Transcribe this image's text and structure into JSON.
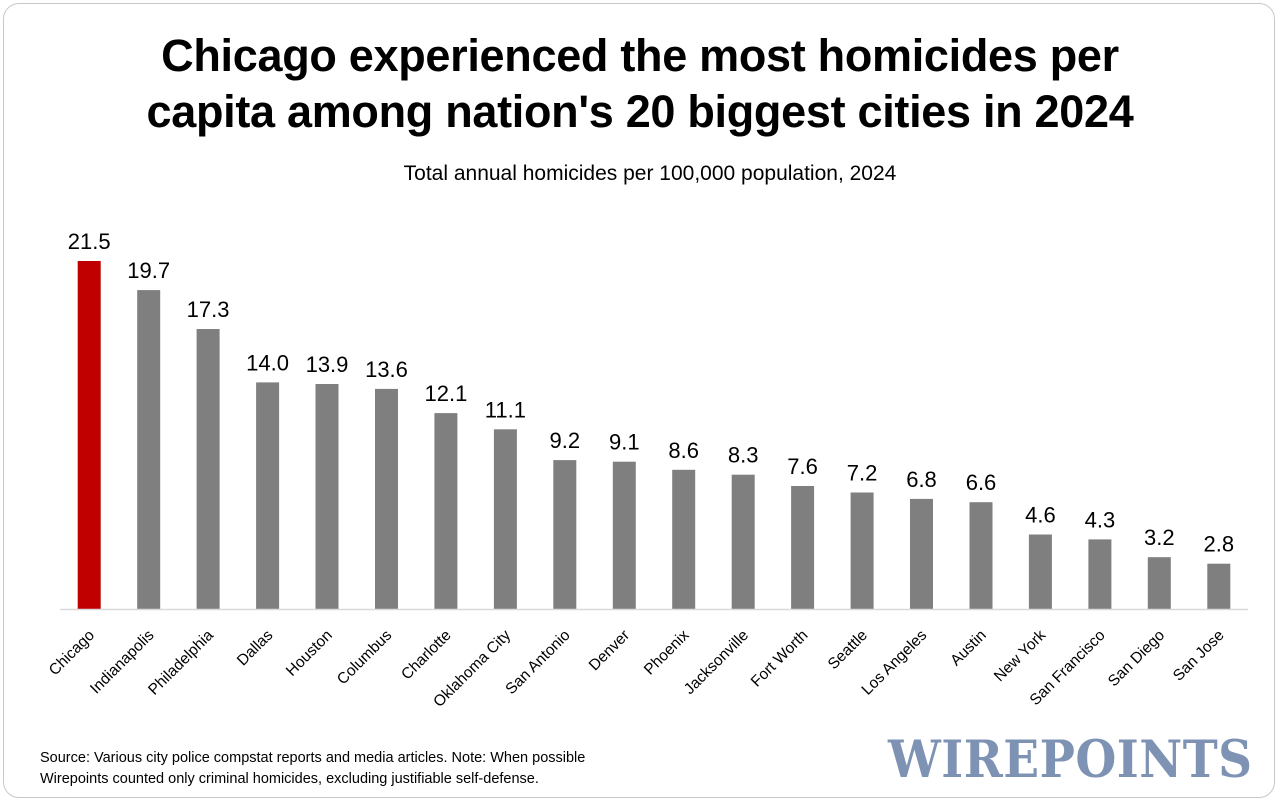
{
  "chart_data": {
    "type": "bar",
    "title": "Chicago experienced the most homicides per capita among nation's 20 biggest cities in 2024",
    "title_lines": [
      "Chicago experienced the most homicides per",
      "capita among nation's 20 biggest cities in 2024"
    ],
    "subtitle": "Total annual homicides per 100,000 population, 2024",
    "xlabel": "",
    "ylabel": "",
    "ylim": [
      0,
      21.5
    ],
    "grid": false,
    "categories": [
      "Chicago",
      "Indianapolis",
      "Philadelphia",
      "Dallas",
      "Houston",
      "Columbus",
      "Charlotte",
      "Oklahoma City",
      "San Antonio",
      "Denver",
      "Phoenix",
      "Jacksonville",
      "Fort Worth",
      "Seattle",
      "Los Angeles",
      "Austin",
      "New York",
      "San Francisco",
      "San Diego",
      "San Jose"
    ],
    "values": [
      21.5,
      19.7,
      17.3,
      14.0,
      13.9,
      13.6,
      12.1,
      11.1,
      9.2,
      9.1,
      8.6,
      8.3,
      7.6,
      7.2,
      6.8,
      6.6,
      4.6,
      4.3,
      3.2,
      2.8
    ],
    "labels": [
      "21.5",
      "19.7",
      "17.3",
      "14.0",
      "13.9",
      "13.6",
      "12.1",
      "11.1",
      "9.2",
      "9.1",
      "8.6",
      "8.3",
      "7.6",
      "7.2",
      "6.8",
      "6.6",
      "4.6",
      "4.3",
      "3.2",
      "2.8"
    ],
    "highlight_category": "Chicago",
    "colors": {
      "highlight": "#c00000",
      "default": "#7f7f7f",
      "axis": "#d9d9d9"
    }
  },
  "footer": {
    "source_line1": "Source: Various city police compstat reports and media articles. Note: When possible",
    "source_line2": "Wirepoints counted only criminal homicides, excluding justifiable self-defense.",
    "logo_text": "WIREPOINTS"
  }
}
